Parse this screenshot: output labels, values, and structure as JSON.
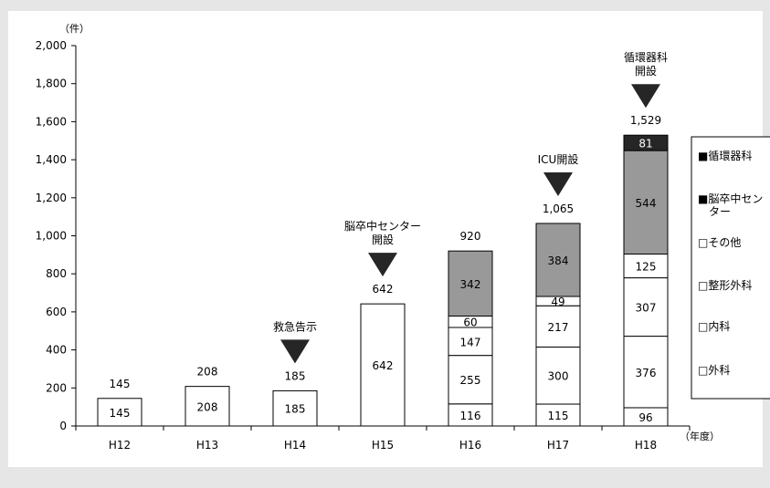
{
  "chart_data": {
    "type": "bar",
    "stacked": true,
    "categories": [
      "H12",
      "H13",
      "H14",
      "H15",
      "H16",
      "H17",
      "H18"
    ],
    "ylim": [
      0,
      2000
    ],
    "y_ticks": [
      "0",
      "200",
      "400",
      "600",
      "800",
      "1,000",
      "1,200",
      "1,400",
      "1,600",
      "1,800",
      "2,000"
    ],
    "y_unit": "（件）",
    "x_unit": "（年度）",
    "grid": false,
    "legend_placement": "right",
    "series": [
      {
        "name": "外科",
        "color": "#ffffff",
        "values": [
          145,
          208,
          185,
          642,
          116,
          115,
          96
        ]
      },
      {
        "name": "内科",
        "color": "#ffffff",
        "values": [
          null,
          null,
          null,
          null,
          255,
          300,
          376
        ]
      },
      {
        "name": "整形外科",
        "color": "#ffffff",
        "values": [
          null,
          null,
          null,
          null,
          147,
          217,
          307
        ]
      },
      {
        "name": "その他",
        "color": "#ffffff",
        "values": [
          null,
          null,
          null,
          null,
          60,
          49,
          125
        ]
      },
      {
        "name": "脳卒中センター",
        "color": "#999999",
        "values": [
          null,
          null,
          null,
          null,
          342,
          384,
          544
        ]
      },
      {
        "name": "循環器科",
        "color": "#262626",
        "values": [
          null,
          null,
          null,
          null,
          null,
          null,
          81
        ]
      }
    ],
    "totals": [
      "145",
      "208",
      "185",
      "642",
      "920",
      "1,065",
      "1,529"
    ],
    "legend": [
      {
        "label": "■循環器科"
      },
      {
        "label": "■脳卒中セン",
        "label2": "ター"
      },
      {
        "label": "□その他"
      },
      {
        "label": "□整形外科"
      },
      {
        "label": "□内科"
      },
      {
        "label": "□外科"
      }
    ],
    "annotations": [
      {
        "category": "H14",
        "lines": [
          "救急告示"
        ]
      },
      {
        "category": "H15",
        "lines": [
          "脳卒中センター",
          "開設"
        ]
      },
      {
        "category": "H17",
        "lines": [
          "ICU開設"
        ]
      },
      {
        "category": "H18",
        "lines": [
          "循環器科",
          "開設"
        ]
      }
    ]
  }
}
